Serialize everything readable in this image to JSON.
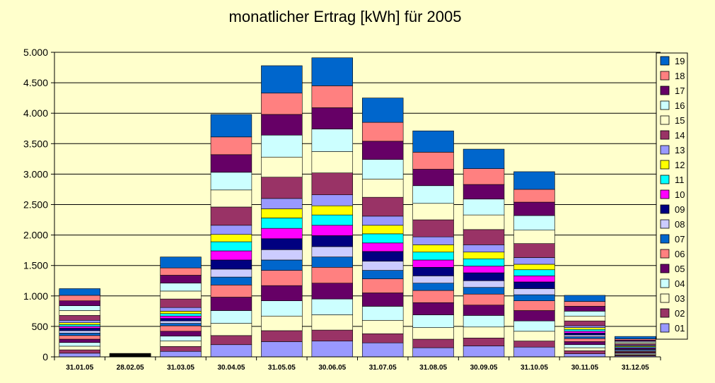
{
  "chart_data": {
    "type": "bar",
    "stacked": true,
    "title": "monatlicher Ertrag [kWh] für 2005",
    "xlabel": "",
    "ylabel": "",
    "ylim": [
      0,
      5000
    ],
    "yticks": [
      0,
      500,
      1000,
      1500,
      2000,
      2500,
      3000,
      3500,
      4000,
      4500,
      5000
    ],
    "ytick_labels": [
      "0",
      "500",
      "1.000",
      "1.500",
      "2.000",
      "2.500",
      "3.000",
      "3.500",
      "4.000",
      "4.500",
      "5.000"
    ],
    "grid": "horizontal",
    "legend_position": "right",
    "categories": [
      "31.01.05",
      "28.02.05",
      "31.03.05",
      "30.04.05",
      "31.05.05",
      "30.06.05",
      "31.07.05",
      "31.08.05",
      "30.09.05",
      "31.10.05",
      "30.11.05",
      "31.12.05"
    ],
    "series": [
      {
        "name": "01",
        "color": "#9999FF",
        "values": [
          60,
          3,
          90,
          200,
          250,
          260,
          230,
          150,
          180,
          160,
          50,
          15
        ]
      },
      {
        "name": "02",
        "color": "#993366",
        "values": [
          55,
          3,
          80,
          150,
          180,
          180,
          150,
          140,
          130,
          100,
          50,
          15
        ]
      },
      {
        "name": "03",
        "color": "#FFFFCC",
        "values": [
          60,
          3,
          90,
          200,
          240,
          250,
          220,
          190,
          180,
          160,
          50,
          15
        ]
      },
      {
        "name": "04",
        "color": "#CCFFFF",
        "values": [
          60,
          3,
          80,
          210,
          250,
          260,
          230,
          210,
          190,
          170,
          50,
          15
        ]
      },
      {
        "name": "05",
        "color": "#660066",
        "values": [
          55,
          3,
          80,
          220,
          250,
          260,
          220,
          200,
          170,
          170,
          50,
          15
        ]
      },
      {
        "name": "06",
        "color": "#FF8080",
        "values": [
          60,
          3,
          90,
          200,
          250,
          260,
          230,
          200,
          180,
          160,
          50,
          15
        ]
      },
      {
        "name": "07",
        "color": "#0066CC",
        "values": [
          40,
          3,
          40,
          130,
          170,
          170,
          140,
          120,
          110,
          100,
          30,
          15
        ]
      },
      {
        "name": "08",
        "color": "#CCCCFF",
        "values": [
          40,
          3,
          40,
          130,
          170,
          170,
          150,
          120,
          110,
          100,
          30,
          15
        ]
      },
      {
        "name": "09",
        "color": "#000080",
        "values": [
          40,
          3,
          40,
          150,
          180,
          180,
          160,
          140,
          130,
          110,
          30,
          15
        ]
      },
      {
        "name": "10",
        "color": "#FF00FF",
        "values": [
          30,
          3,
          40,
          150,
          170,
          170,
          140,
          120,
          110,
          100,
          30,
          15
        ]
      },
      {
        "name": "11",
        "color": "#00FFFF",
        "values": [
          30,
          3,
          40,
          150,
          170,
          170,
          150,
          130,
          120,
          100,
          30,
          15
        ]
      },
      {
        "name": "12",
        "color": "#FFFF00",
        "values": [
          30,
          3,
          40,
          120,
          150,
          150,
          140,
          120,
          110,
          90,
          30,
          15
        ]
      },
      {
        "name": "13",
        "color": "#9999FF",
        "values": [
          40,
          3,
          60,
          150,
          170,
          180,
          150,
          130,
          120,
          110,
          30,
          15
        ]
      },
      {
        "name": "14",
        "color": "#993366",
        "values": [
          80,
          3,
          140,
          300,
          350,
          360,
          310,
          280,
          250,
          230,
          80,
          20
        ]
      },
      {
        "name": "15",
        "color": "#FFFFCC",
        "values": [
          80,
          3,
          130,
          280,
          330,
          350,
          300,
          270,
          240,
          220,
          80,
          20
        ]
      },
      {
        "name": "16",
        "color": "#CCFFFF",
        "values": [
          80,
          3,
          130,
          290,
          360,
          370,
          320,
          290,
          260,
          240,
          80,
          20
        ]
      },
      {
        "name": "17",
        "color": "#660066",
        "values": [
          80,
          3,
          130,
          290,
          340,
          350,
          300,
          270,
          240,
          220,
          80,
          20
        ]
      },
      {
        "name": "18",
        "color": "#FF8080",
        "values": [
          90,
          3,
          120,
          290,
          350,
          360,
          310,
          280,
          260,
          210,
          80,
          20
        ]
      },
      {
        "name": "19",
        "color": "#0066CC",
        "values": [
          110,
          3,
          180,
          370,
          450,
          460,
          400,
          350,
          320,
          290,
          100,
          40
        ]
      }
    ]
  }
}
